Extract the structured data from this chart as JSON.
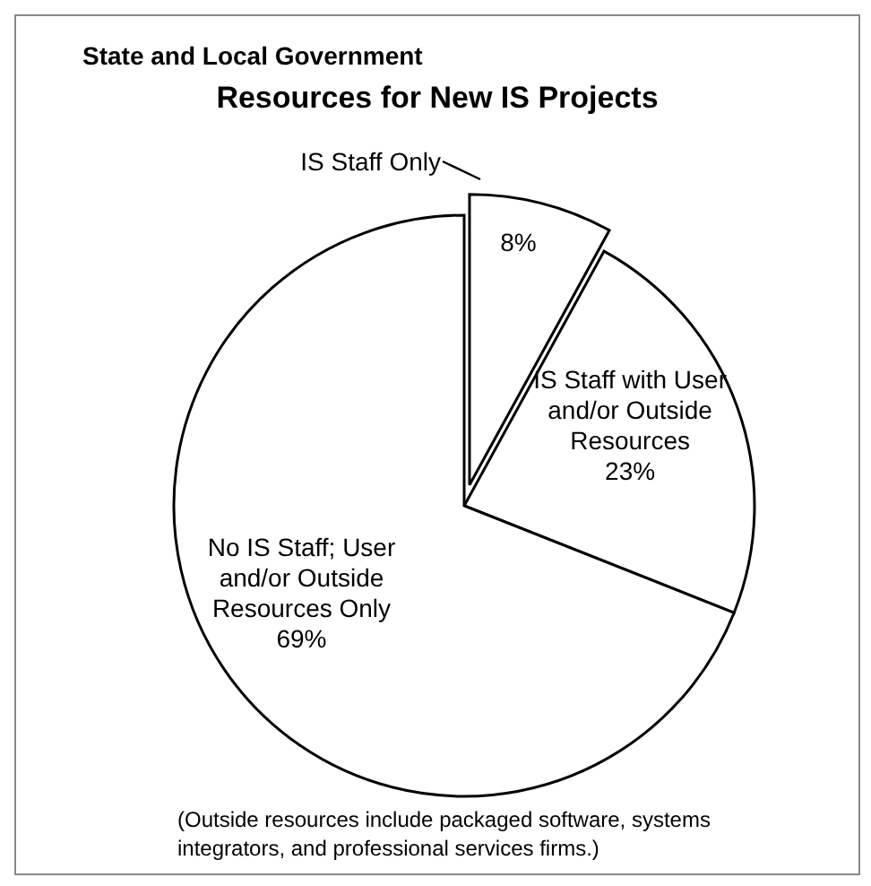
{
  "chart_data": {
    "type": "pie",
    "subtitle": "State and Local Government",
    "title": "Resources for New IS Projects",
    "categories": [
      "IS Staff Only",
      "IS Staff with User and/or Outside Resources",
      "No IS Staff; User and/or Outside Resources Only"
    ],
    "values": [
      8,
      23,
      69
    ],
    "colors": [
      "#ffffff",
      "#ffffff",
      "#ffffff"
    ],
    "value_labels": [
      "8%",
      "23%",
      "69%"
    ],
    "annotations": [
      "(Outside resources include packaged software, systems integrators, and professional services firms.)"
    ]
  }
}
